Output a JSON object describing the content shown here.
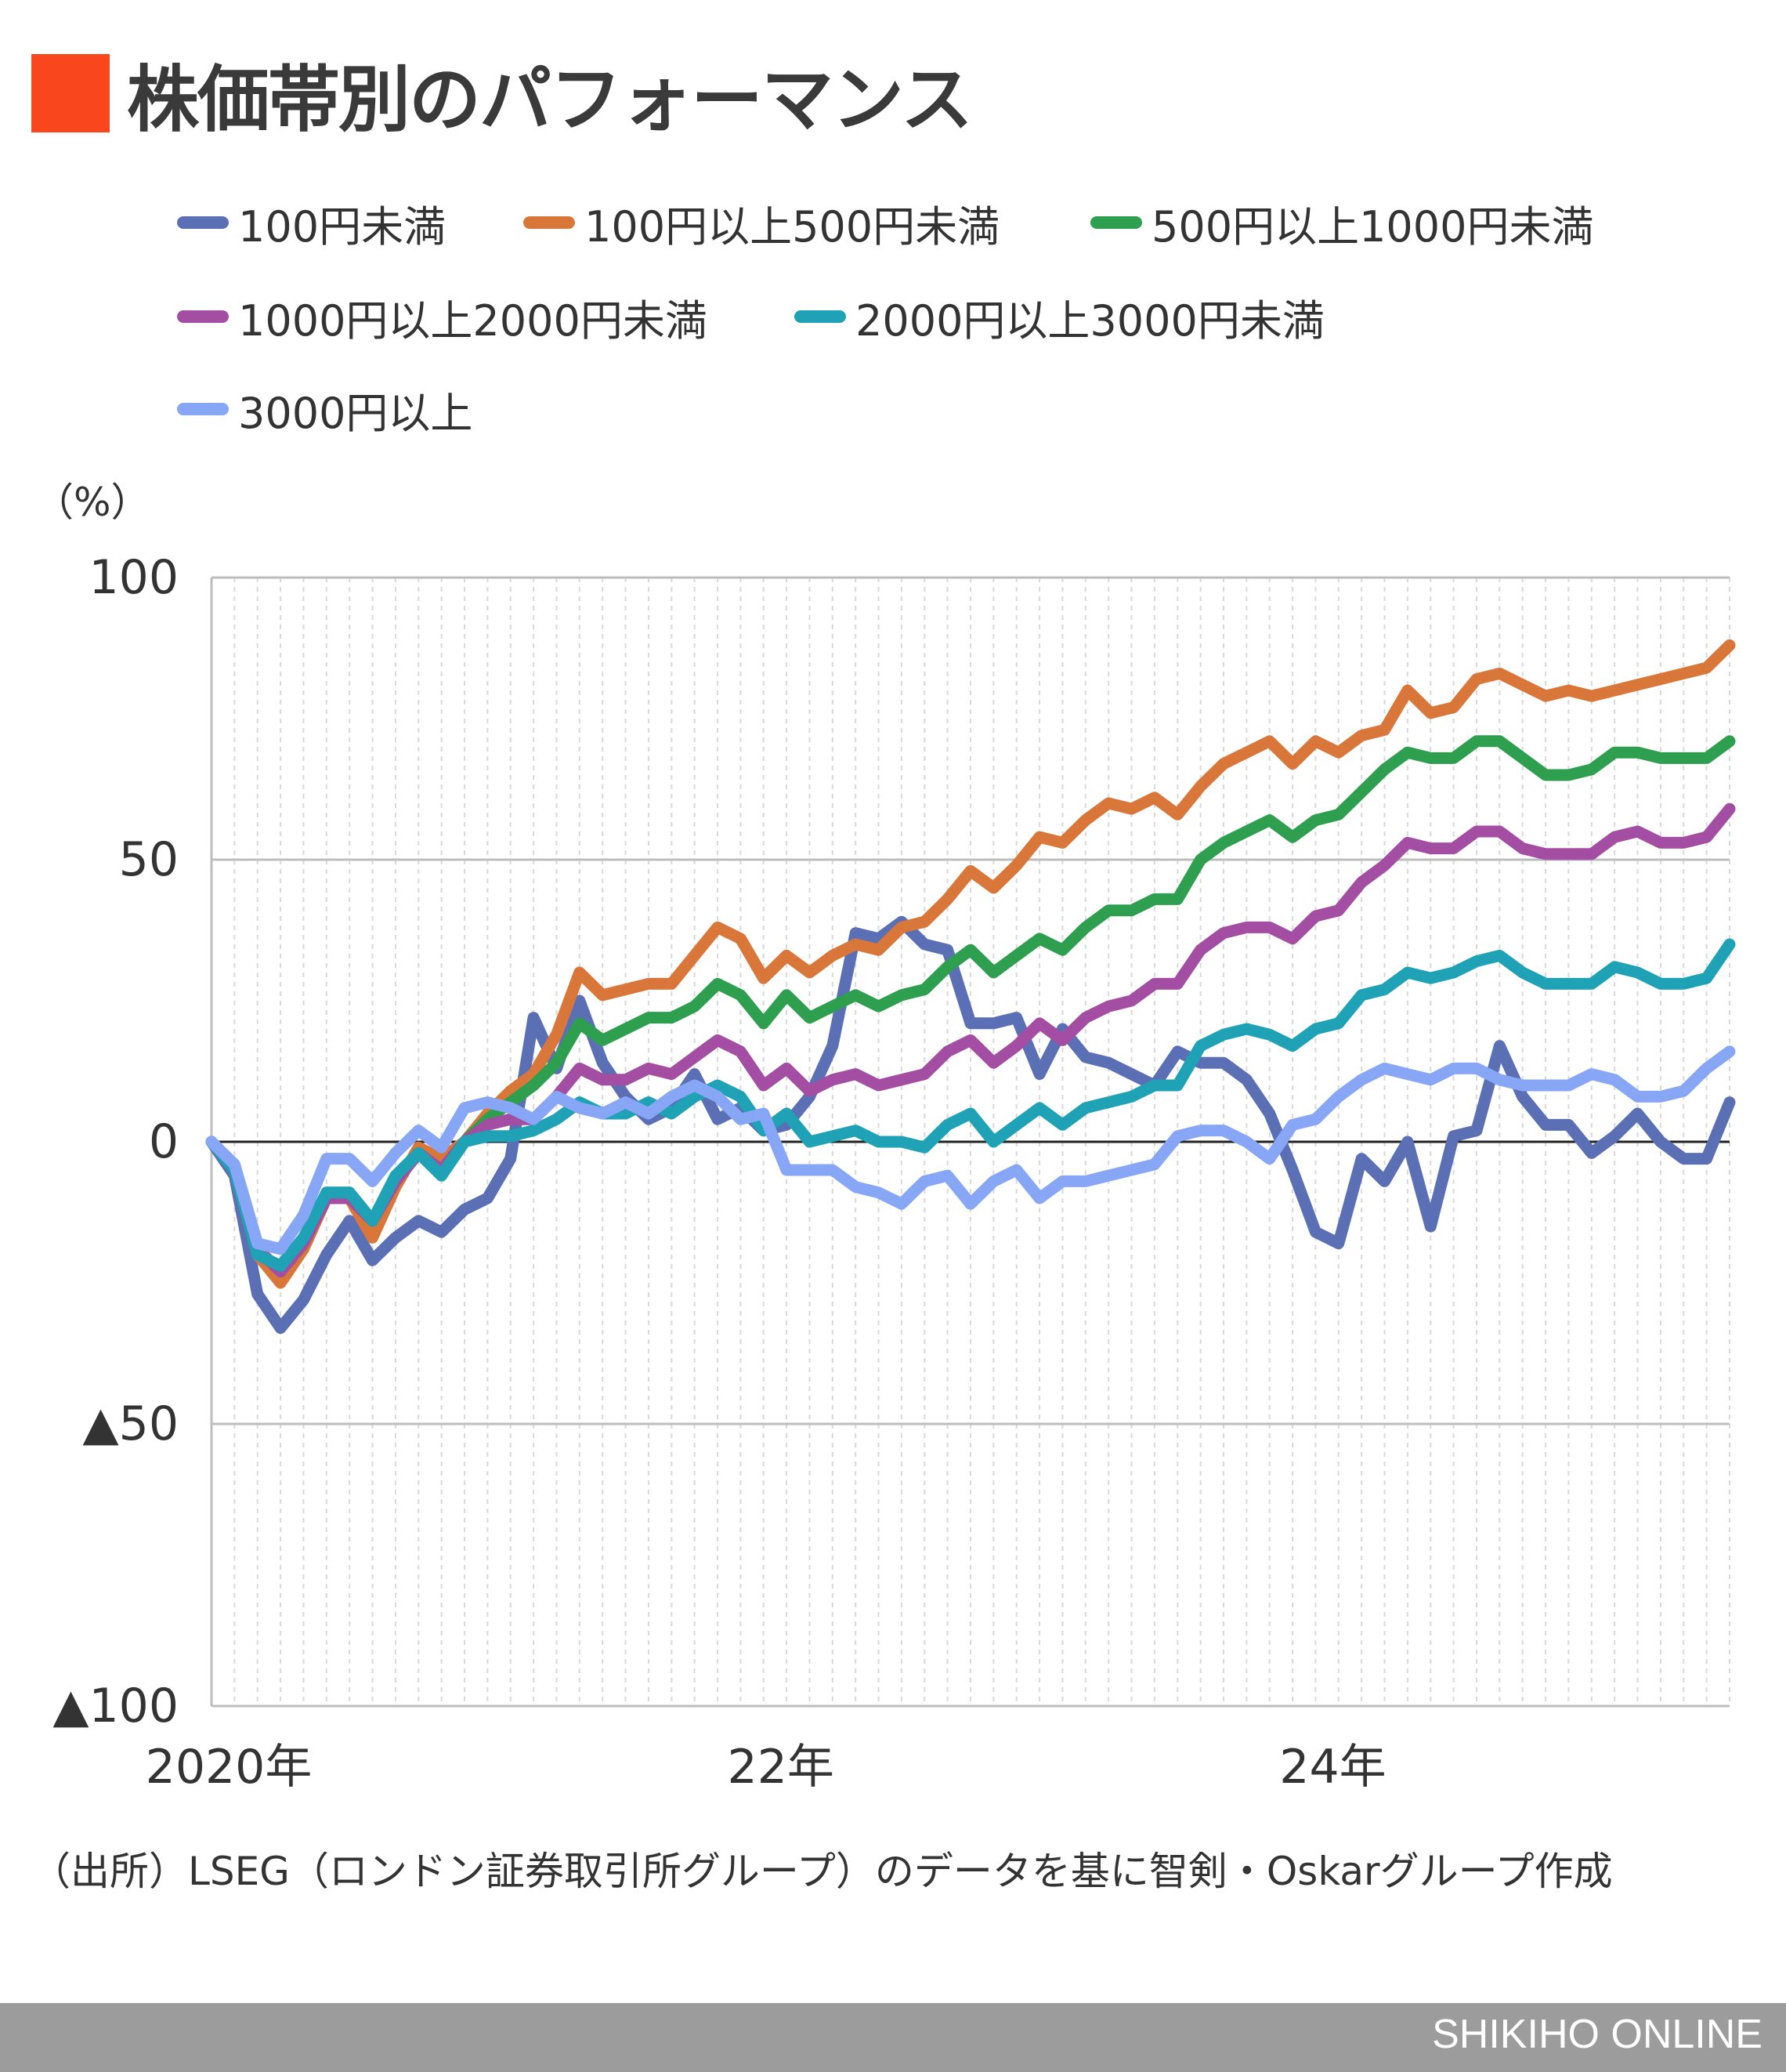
{
  "title": "株価帯別のパフォーマンス",
  "source_note": "（出所）LSEG（ロンドン証券取引所グループ）のデータを基に智剣・Oskarグループ作成",
  "footer": "SHIKIHO ONLINE",
  "colors": {
    "accent": "#f9461c",
    "grid": "#bdbdbd",
    "zero": "#222222",
    "footer_bg": "#9c9c9c"
  },
  "chart_data": {
    "type": "line",
    "title": "株価帯別のパフォーマンス",
    "ylabel": "（%）",
    "xlabel": "",
    "ylim": [
      -100,
      100
    ],
    "y_ticks": [
      {
        "value": 100,
        "label": "100"
      },
      {
        "value": 50,
        "label": "50"
      },
      {
        "value": 0,
        "label": "0"
      },
      {
        "value": -50,
        "label": "▲50"
      },
      {
        "value": -100,
        "label": "▲100"
      }
    ],
    "x_ticks": [
      {
        "index": 0,
        "label": "2020年"
      },
      {
        "index": 24,
        "label": "22年"
      },
      {
        "index": 48,
        "label": "24年"
      }
    ],
    "months": 67,
    "series": [
      {
        "name": "100円未満",
        "color": "#5b6fb5",
        "values": [
          0,
          -6,
          -27,
          -33,
          -28,
          -20,
          -14,
          -21,
          -17,
          -14,
          -16,
          -12,
          -10,
          -3,
          22,
          13,
          25,
          14,
          8,
          4,
          6,
          12,
          4,
          6,
          2,
          3,
          8,
          17,
          37,
          36,
          39,
          35,
          34,
          21,
          21,
          22,
          12,
          20,
          15,
          14,
          12,
          10,
          16,
          14,
          14,
          11,
          5,
          -5,
          -16,
          -18,
          -3,
          -7,
          0,
          -15,
          1,
          2,
          17,
          8,
          3,
          3,
          -2,
          1,
          5,
          0,
          -3,
          -3,
          7
        ]
      },
      {
        "name": "100円以上500円未満",
        "color": "#d9773a",
        "values": [
          0,
          -5,
          -20,
          -25,
          -19,
          -10,
          -10,
          -17,
          -8,
          -1,
          -3,
          0,
          5,
          9,
          12,
          19,
          30,
          26,
          27,
          28,
          28,
          33,
          38,
          36,
          29,
          33,
          30,
          33,
          35,
          34,
          38,
          39,
          43,
          48,
          45,
          49,
          54,
          53,
          57,
          60,
          59,
          61,
          58,
          63,
          67,
          69,
          71,
          67,
          71,
          69,
          72,
          73,
          80,
          76,
          77,
          82,
          83,
          81,
          79,
          80,
          79,
          80,
          81,
          82,
          83,
          84,
          88
        ]
      },
      {
        "name": "500円以上1000円未満",
        "color": "#2e9e4f",
        "values": [
          0,
          -5,
          -19,
          -23,
          -18,
          -9,
          -9,
          -14,
          -7,
          -2,
          -5,
          0,
          4,
          7,
          10,
          14,
          21,
          18,
          20,
          22,
          22,
          24,
          28,
          26,
          21,
          26,
          22,
          24,
          26,
          24,
          26,
          27,
          31,
          34,
          30,
          33,
          36,
          34,
          38,
          41,
          41,
          43,
          43,
          50,
          53,
          55,
          57,
          54,
          57,
          58,
          62,
          66,
          69,
          68,
          68,
          71,
          71,
          68,
          65,
          65,
          66,
          69,
          69,
          68,
          68,
          68,
          71
        ]
      },
      {
        "name": "1000円以上2000円未満",
        "color": "#a34ea3",
        "values": [
          0,
          -5,
          -19,
          -23,
          -18,
          -10,
          -10,
          -14,
          -7,
          -2,
          -5,
          0,
          3,
          4,
          4,
          8,
          13,
          11,
          11,
          13,
          12,
          15,
          18,
          16,
          10,
          13,
          9,
          11,
          12,
          10,
          11,
          12,
          16,
          18,
          14,
          17,
          21,
          18,
          22,
          24,
          25,
          28,
          28,
          34,
          37,
          38,
          38,
          36,
          40,
          41,
          46,
          49,
          53,
          52,
          52,
          55,
          55,
          52,
          51,
          51,
          51,
          54,
          55,
          53,
          53,
          54,
          59
        ]
      },
      {
        "name": "2000円以上3000円未満",
        "color": "#1fa2b5",
        "values": [
          0,
          -5,
          -20,
          -22,
          -17,
          -9,
          -9,
          -14,
          -6,
          -2,
          -6,
          0,
          1,
          1,
          2,
          4,
          7,
          5,
          5,
          7,
          5,
          8,
          10,
          8,
          2,
          5,
          0,
          1,
          2,
          0,
          0,
          -1,
          3,
          5,
          0,
          3,
          6,
          3,
          6,
          7,
          8,
          10,
          10,
          17,
          19,
          20,
          19,
          17,
          20,
          21,
          26,
          27,
          30,
          29,
          30,
          32,
          33,
          30,
          28,
          28,
          28,
          31,
          30,
          28,
          28,
          29,
          35
        ]
      },
      {
        "name": "3000円以上",
        "color": "#87a6f5",
        "values": [
          0,
          -4,
          -18,
          -19,
          -13,
          -3,
          -3,
          -7,
          -2,
          2,
          -1,
          6,
          7,
          6,
          4,
          8,
          6,
          5,
          7,
          5,
          8,
          10,
          8,
          4,
          5,
          -5,
          -5,
          -5,
          -8,
          -9,
          -11,
          -7,
          -6,
          -11,
          -7,
          -5,
          -10,
          -7,
          -7,
          -6,
          -5,
          -4,
          1,
          2,
          2,
          0,
          -3,
          3,
          4,
          8,
          11,
          13,
          12,
          11,
          13,
          13,
          11,
          10,
          10,
          10,
          12,
          11,
          8,
          8,
          9,
          13,
          16
        ]
      }
    ]
  }
}
